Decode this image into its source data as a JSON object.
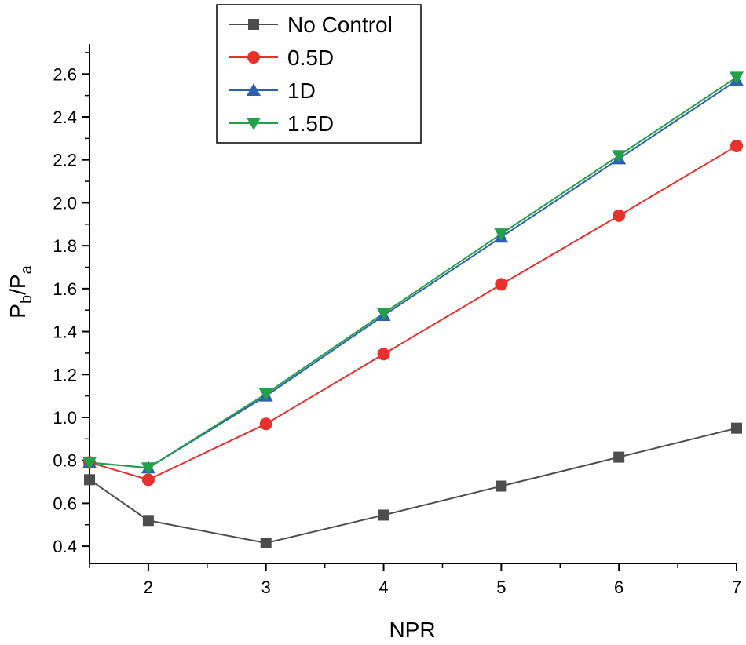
{
  "chart_data": {
    "type": "line",
    "title": "",
    "xlabel": "NPR",
    "ylabel": {
      "main": "P",
      "sub1": "b",
      "slash": "/P",
      "sub2": "a"
    },
    "xlim": [
      1.5,
      7
    ],
    "ylim": [
      0.32,
      2.74
    ],
    "x_major_ticks": [
      2,
      3,
      4,
      5,
      6,
      7
    ],
    "x_minor_ticks": [
      1.5,
      2.5,
      3.5,
      4.5,
      5.5,
      6.5
    ],
    "x_tick_labels": [
      "2",
      "3",
      "4",
      "5",
      "6",
      "7"
    ],
    "y_major_ticks": [
      0.4,
      0.6,
      0.8,
      1.0,
      1.2,
      1.4,
      1.6,
      1.8,
      2.0,
      2.2,
      2.4,
      2.6
    ],
    "y_minor_ticks": [
      0.5,
      0.7,
      0.9,
      1.1,
      1.3,
      1.5,
      1.7,
      1.9,
      2.1,
      2.3,
      2.5,
      2.7
    ],
    "y_tick_labels": [
      "0.4",
      "0.6",
      "0.8",
      "1.0",
      "1.2",
      "1.4",
      "1.6",
      "1.8",
      "2.0",
      "2.2",
      "2.4",
      "2.6"
    ],
    "grid": false,
    "legend_position": "top-left",
    "x": [
      1.5,
      2,
      3,
      4,
      5,
      6,
      7
    ],
    "series": [
      {
        "name": "No Control",
        "color": "#4d4d4d",
        "marker": "square",
        "values": [
          0.71,
          0.52,
          0.415,
          0.545,
          0.68,
          0.815,
          0.95
        ]
      },
      {
        "name": "0.5D",
        "color": "#e8302c",
        "marker": "circle",
        "values": [
          0.79,
          0.71,
          0.97,
          1.295,
          1.62,
          1.94,
          2.265
        ]
      },
      {
        "name": "1D",
        "color": "#2f5fb3",
        "marker": "triangle-up",
        "values": [
          0.79,
          0.765,
          1.1,
          1.475,
          1.84,
          2.205,
          2.57
        ]
      },
      {
        "name": "1.5D",
        "color": "#22a04a",
        "marker": "triangle-down",
        "values": [
          0.79,
          0.765,
          1.11,
          1.485,
          1.855,
          2.22,
          2.585
        ]
      }
    ]
  }
}
